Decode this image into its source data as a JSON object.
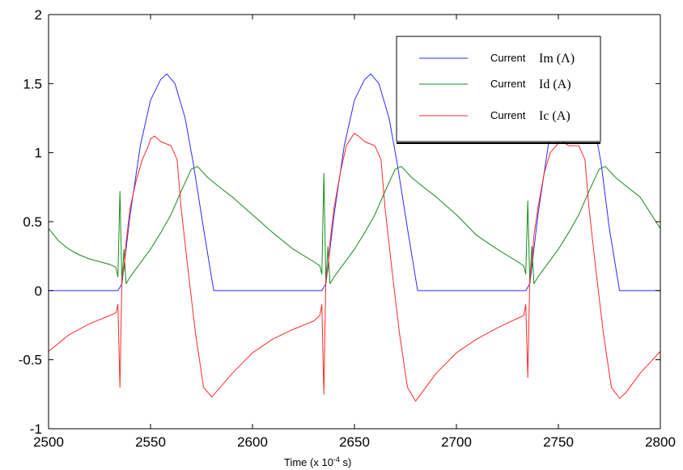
{
  "chart_data": {
    "type": "line",
    "title": "",
    "xlabel": "Time (x 10",
    "xlabel_exponent": "-4",
    "xlabel_suffix": " s)",
    "ylabel": "",
    "xlim": [
      2500,
      2800
    ],
    "ylim": [
      -1,
      2
    ],
    "x_ticks": [
      2500,
      2550,
      2600,
      2650,
      2700,
      2750,
      2800
    ],
    "y_ticks": [
      -1,
      -0.5,
      0,
      0.5,
      1,
      1.5,
      2
    ],
    "x_tick_labels": [
      "2500",
      "2550",
      "2600",
      "2650",
      "2700",
      "2750",
      "2800"
    ],
    "y_tick_labels": [
      "-1",
      "-0.5",
      "0",
      "0.5",
      "1",
      "1.5",
      "2"
    ],
    "grid": false,
    "legend_position": "top-right",
    "series": [
      {
        "name": "Current Im (Λ)",
        "legend_prefix": "Current",
        "legend_symbol": "Im (Λ)",
        "color": "#2b2bff",
        "x": [
          2500,
          2534,
          2536,
          2540,
          2545,
          2550,
          2555,
          2558,
          2562,
          2567,
          2571,
          2576,
          2581,
          2600,
          2634,
          2636,
          2640,
          2645,
          2650,
          2655,
          2658,
          2662,
          2667,
          2671,
          2676,
          2681,
          2700,
          2734,
          2736,
          2740,
          2745,
          2750,
          2755,
          2758,
          2762,
          2767,
          2771,
          2775,
          2780,
          2800
        ],
        "values": [
          0,
          0,
          0.05,
          0.55,
          1.05,
          1.38,
          1.53,
          1.57,
          1.5,
          1.25,
          0.92,
          0.45,
          0,
          0,
          0,
          0.05,
          0.55,
          1.05,
          1.38,
          1.53,
          1.57,
          1.5,
          1.25,
          0.92,
          0.45,
          0,
          0,
          0,
          0.05,
          0.55,
          1.05,
          1.38,
          1.53,
          1.57,
          1.5,
          1.25,
          0.92,
          0.45,
          0,
          0
        ]
      },
      {
        "name": "Current Id (A)",
        "legend_prefix": "Current",
        "legend_symbol": "Id (A)",
        "color": "#1a8a1a",
        "x": [
          2500,
          2505,
          2510,
          2515,
          2520,
          2525,
          2530,
          2533,
          2534,
          2535,
          2536,
          2537,
          2538,
          2540,
          2545,
          2550,
          2555,
          2560,
          2565,
          2570,
          2573,
          2578,
          2583,
          2590,
          2600,
          2610,
          2620,
          2630,
          2633,
          2634,
          2635,
          2636,
          2637,
          2638,
          2640,
          2645,
          2650,
          2655,
          2660,
          2665,
          2670,
          2673,
          2678,
          2683,
          2690,
          2700,
          2710,
          2720,
          2730,
          2733,
          2734,
          2735,
          2736,
          2737,
          2738,
          2740,
          2745,
          2750,
          2755,
          2760,
          2765,
          2770,
          2773,
          2778,
          2783,
          2790,
          2800
        ],
        "values": [
          0.45,
          0.36,
          0.3,
          0.26,
          0.23,
          0.21,
          0.19,
          0.17,
          0.1,
          0.72,
          0.05,
          0.3,
          0.05,
          0.1,
          0.2,
          0.3,
          0.42,
          0.55,
          0.72,
          0.88,
          0.9,
          0.82,
          0.76,
          0.68,
          0.55,
          0.42,
          0.3,
          0.21,
          0.18,
          0.12,
          0.85,
          0.05,
          0.32,
          0.05,
          0.1,
          0.2,
          0.3,
          0.42,
          0.55,
          0.72,
          0.88,
          0.9,
          0.82,
          0.76,
          0.68,
          0.55,
          0.4,
          0.3,
          0.21,
          0.18,
          0.12,
          0.65,
          0.05,
          0.32,
          0.05,
          0.1,
          0.2,
          0.3,
          0.42,
          0.55,
          0.72,
          0.88,
          0.9,
          0.82,
          0.76,
          0.68,
          0.45
        ]
      },
      {
        "name": "Current Ic (A)",
        "legend_prefix": "Current",
        "legend_symbol": "Ic (A)",
        "color": "#ff2a2a",
        "x": [
          2500,
          2505,
          2510,
          2515,
          2520,
          2525,
          2530,
          2533,
          2534,
          2535,
          2536,
          2537,
          2538,
          2540,
          2543,
          2546,
          2549,
          2550,
          2552,
          2555,
          2560,
          2563,
          2565,
          2568,
          2572,
          2576,
          2580,
          2583,
          2590,
          2600,
          2610,
          2620,
          2630,
          2633,
          2634,
          2635,
          2636,
          2637,
          2638,
          2640,
          2643,
          2646,
          2649,
          2650,
          2652,
          2655,
          2660,
          2663,
          2665,
          2668,
          2672,
          2676,
          2680,
          2683,
          2690,
          2700,
          2710,
          2720,
          2730,
          2733,
          2734,
          2735,
          2736,
          2737,
          2738,
          2740,
          2743,
          2746,
          2749,
          2750,
          2752,
          2755,
          2760,
          2763,
          2765,
          2768,
          2772,
          2776,
          2780,
          2783,
          2790,
          2800
        ],
        "values": [
          -0.44,
          -0.38,
          -0.32,
          -0.28,
          -0.24,
          -0.21,
          -0.18,
          -0.16,
          -0.1,
          -0.7,
          0.1,
          0.15,
          0.35,
          0.6,
          0.8,
          0.95,
          1.05,
          1.1,
          1.12,
          1.08,
          1.05,
          0.95,
          0.6,
          0.2,
          -0.3,
          -0.7,
          -0.77,
          -0.72,
          -0.6,
          -0.45,
          -0.35,
          -0.28,
          -0.22,
          -0.18,
          -0.1,
          -0.75,
          0.1,
          0.15,
          0.35,
          0.6,
          0.85,
          1.05,
          1.12,
          1.14,
          1.12,
          1.08,
          1.05,
          0.95,
          0.6,
          0.2,
          -0.3,
          -0.7,
          -0.8,
          -0.74,
          -0.6,
          -0.45,
          -0.35,
          -0.27,
          -0.2,
          -0.18,
          -0.1,
          -0.63,
          0.1,
          0.2,
          0.4,
          0.6,
          0.85,
          1.0,
          1.05,
          1.08,
          1.08,
          1.05,
          1.05,
          0.95,
          0.6,
          0.2,
          -0.3,
          -0.7,
          -0.78,
          -0.74,
          -0.6,
          -0.44
        ]
      }
    ]
  }
}
